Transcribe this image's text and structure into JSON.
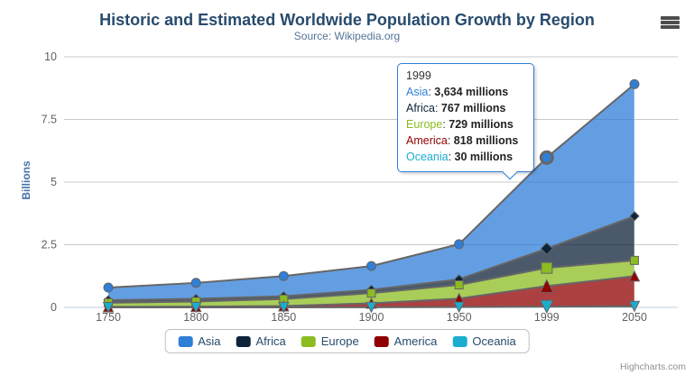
{
  "chart": {
    "title": "Historic and Estimated Worldwide Population Growth by Region",
    "subtitle": "Source: Wikipedia.org",
    "credits": "Highcharts.com",
    "menu_icon": "hamburger-icon"
  },
  "chart_data": {
    "type": "area",
    "stacking": "normal",
    "title": "Historic and Estimated Worldwide Population Growth by Region",
    "subtitle": "Source: Wikipedia.org",
    "xlabel": "",
    "ylabel": "Billions",
    "unit": "millions",
    "grid": true,
    "legend_position": "bottom",
    "categories": [
      "1750",
      "1800",
      "1850",
      "1900",
      "1950",
      "1999",
      "2050"
    ],
    "yAxis": {
      "min": 0,
      "max": 10,
      "ticks": [
        "0",
        "2.5",
        "5",
        "7.5",
        "10"
      ]
    },
    "stack_order_bottom_to_top": [
      "Oceania",
      "America",
      "Europe",
      "Africa",
      "Asia"
    ],
    "series": [
      {
        "name": "Asia",
        "color": "#2f7ed8",
        "marker": "circle",
        "values": [
          502,
          635,
          809,
          947,
          1402,
          3634,
          5268
        ]
      },
      {
        "name": "Africa",
        "color": "#0d233a",
        "marker": "diamond",
        "values": [
          106,
          107,
          111,
          133,
          221,
          767,
          1766
        ]
      },
      {
        "name": "Europe",
        "color": "#8bbc21",
        "marker": "square",
        "values": [
          163,
          203,
          276,
          408,
          547,
          729,
          628
        ]
      },
      {
        "name": "America",
        "color": "#910000",
        "marker": "triangle",
        "values": [
          18,
          31,
          54,
          156,
          339,
          818,
          1201
        ]
      },
      {
        "name": "Oceania",
        "color": "#1aadce",
        "marker": "triangle-down",
        "values": [
          2,
          2,
          2,
          6,
          13,
          30,
          46
        ]
      }
    ],
    "line_color": "#666666",
    "fill_opacity": 0.75
  },
  "tooltip": {
    "header": "1999",
    "hover_category_index": 5,
    "border_color": "#2f7ed8",
    "rows": [
      {
        "label": "Asia",
        "color": "#2f7ed8",
        "value": "3,634",
        "suffix": "millions"
      },
      {
        "label": "Africa",
        "color": "#0d233a",
        "value": "767",
        "suffix": "millions"
      },
      {
        "label": "Europe",
        "color": "#8bbc21",
        "value": "729",
        "suffix": "millions"
      },
      {
        "label": "America",
        "color": "#910000",
        "value": "818",
        "suffix": "millions"
      },
      {
        "label": "Oceania",
        "color": "#1aadce",
        "value": "30",
        "suffix": "millions"
      }
    ]
  },
  "colors": {
    "title": "#274b6d",
    "subtitle": "#557399",
    "axis_labels": "#606060",
    "y_axis_title": "#4572A7",
    "grid_line": "#c8c8c8",
    "axis_line": "#c0d0e0",
    "legend_text": "#274b6d",
    "credits": "#909090"
  }
}
